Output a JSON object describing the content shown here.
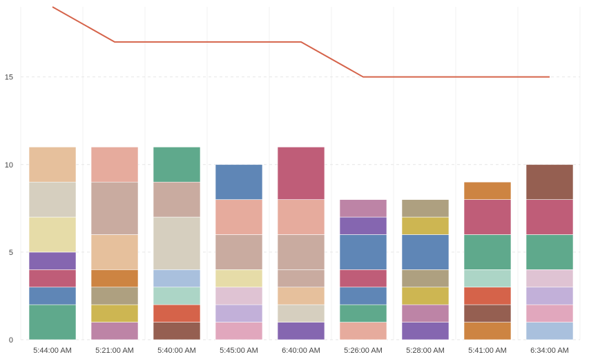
{
  "chart_data": {
    "type": "bar",
    "stacked": true,
    "categories": [
      "5:44:00 AM",
      "5:21:00 AM",
      "5:40:00 AM",
      "5:45:00 AM",
      "6:40:00 AM",
      "5:26:00 AM",
      "5:28:00 AM",
      "5:41:00 AM",
      "6:34:00 AM"
    ],
    "ylim": [
      0,
      19
    ],
    "yticks": [
      0,
      5,
      10,
      15
    ],
    "grid": true,
    "legend": "none",
    "title": "",
    "xlabel": "",
    "ylabel": "",
    "stacks": [
      [
        {
          "value": 2,
          "color": "#5fa98c"
        },
        {
          "value": 1,
          "color": "#5f86b6"
        },
        {
          "value": 1,
          "color": "#bf5d78"
        },
        {
          "value": 1,
          "color": "#8566b0"
        },
        {
          "value": 2,
          "color": "#e6dca8"
        },
        {
          "value": 2,
          "color": "#d6cfbf"
        },
        {
          "value": 2,
          "color": "#e6c09c"
        }
      ],
      [
        {
          "value": 1,
          "color": "#bd84a6"
        },
        {
          "value": 1,
          "color": "#cdb652"
        },
        {
          "value": 1,
          "color": "#aea080"
        },
        {
          "value": 1,
          "color": "#cd8442"
        },
        {
          "value": 2,
          "color": "#e6c09c"
        },
        {
          "value": 3,
          "color": "#c9aba0"
        },
        {
          "value": 2,
          "color": "#e6ab9d"
        }
      ],
      [
        {
          "value": 1,
          "color": "#955f51"
        },
        {
          "value": 1,
          "color": "#d5634a"
        },
        {
          "value": 1,
          "color": "#acd5c6"
        },
        {
          "value": 1,
          "color": "#a9c0dd"
        },
        {
          "value": 3,
          "color": "#d6cfbf"
        },
        {
          "value": 2,
          "color": "#c9aba0"
        },
        {
          "value": 2,
          "color": "#5fa98c"
        }
      ],
      [
        {
          "value": 1,
          "color": "#e1a7bd"
        },
        {
          "value": 1,
          "color": "#c2b0d9"
        },
        {
          "value": 1,
          "color": "#dfc3d3"
        },
        {
          "value": 1,
          "color": "#e6dca8"
        },
        {
          "value": 2,
          "color": "#c9aba0"
        },
        {
          "value": 2,
          "color": "#e6ab9d"
        },
        {
          "value": 2,
          "color": "#5f86b6"
        }
      ],
      [
        {
          "value": 1,
          "color": "#8566b0"
        },
        {
          "value": 1,
          "color": "#d6cfbf"
        },
        {
          "value": 1,
          "color": "#e6c09c"
        },
        {
          "value": 1,
          "color": "#c9aba0"
        },
        {
          "value": 2,
          "color": "#c9aba0"
        },
        {
          "value": 2,
          "color": "#e6ab9d"
        },
        {
          "value": 3,
          "color": "#bf5d78"
        }
      ],
      [
        {
          "value": 1,
          "color": "#e6ab9d"
        },
        {
          "value": 1,
          "color": "#5fa98c"
        },
        {
          "value": 1,
          "color": "#5f86b6"
        },
        {
          "value": 1,
          "color": "#bf5d78"
        },
        {
          "value": 2,
          "color": "#5f86b6"
        },
        {
          "value": 1,
          "color": "#8566b0"
        },
        {
          "value": 1,
          "color": "#bd84a6"
        }
      ],
      [
        {
          "value": 1,
          "color": "#8566b0"
        },
        {
          "value": 1,
          "color": "#bd84a6"
        },
        {
          "value": 1,
          "color": "#cdb652"
        },
        {
          "value": 1,
          "color": "#aea080"
        },
        {
          "value": 2,
          "color": "#5f86b6"
        },
        {
          "value": 1,
          "color": "#cdb652"
        },
        {
          "value": 1,
          "color": "#aea080"
        }
      ],
      [
        {
          "value": 1,
          "color": "#cd8442"
        },
        {
          "value": 1,
          "color": "#955f51"
        },
        {
          "value": 1,
          "color": "#d5634a"
        },
        {
          "value": 1,
          "color": "#acd5c6"
        },
        {
          "value": 2,
          "color": "#5fa98c"
        },
        {
          "value": 2,
          "color": "#bf5d78"
        },
        {
          "value": 1,
          "color": "#cd8442"
        }
      ],
      [
        {
          "value": 1,
          "color": "#a9c0dd"
        },
        {
          "value": 1,
          "color": "#e1a7bd"
        },
        {
          "value": 1,
          "color": "#c2b0d9"
        },
        {
          "value": 1,
          "color": "#dfc3d3"
        },
        {
          "value": 2,
          "color": "#5fa98c"
        },
        {
          "value": 2,
          "color": "#bf5d78"
        },
        {
          "value": 2,
          "color": "#955f51"
        }
      ]
    ],
    "line": {
      "color": "#d5634a",
      "values": [
        19,
        17,
        17,
        17,
        17,
        15,
        15,
        15,
        15
      ]
    }
  }
}
